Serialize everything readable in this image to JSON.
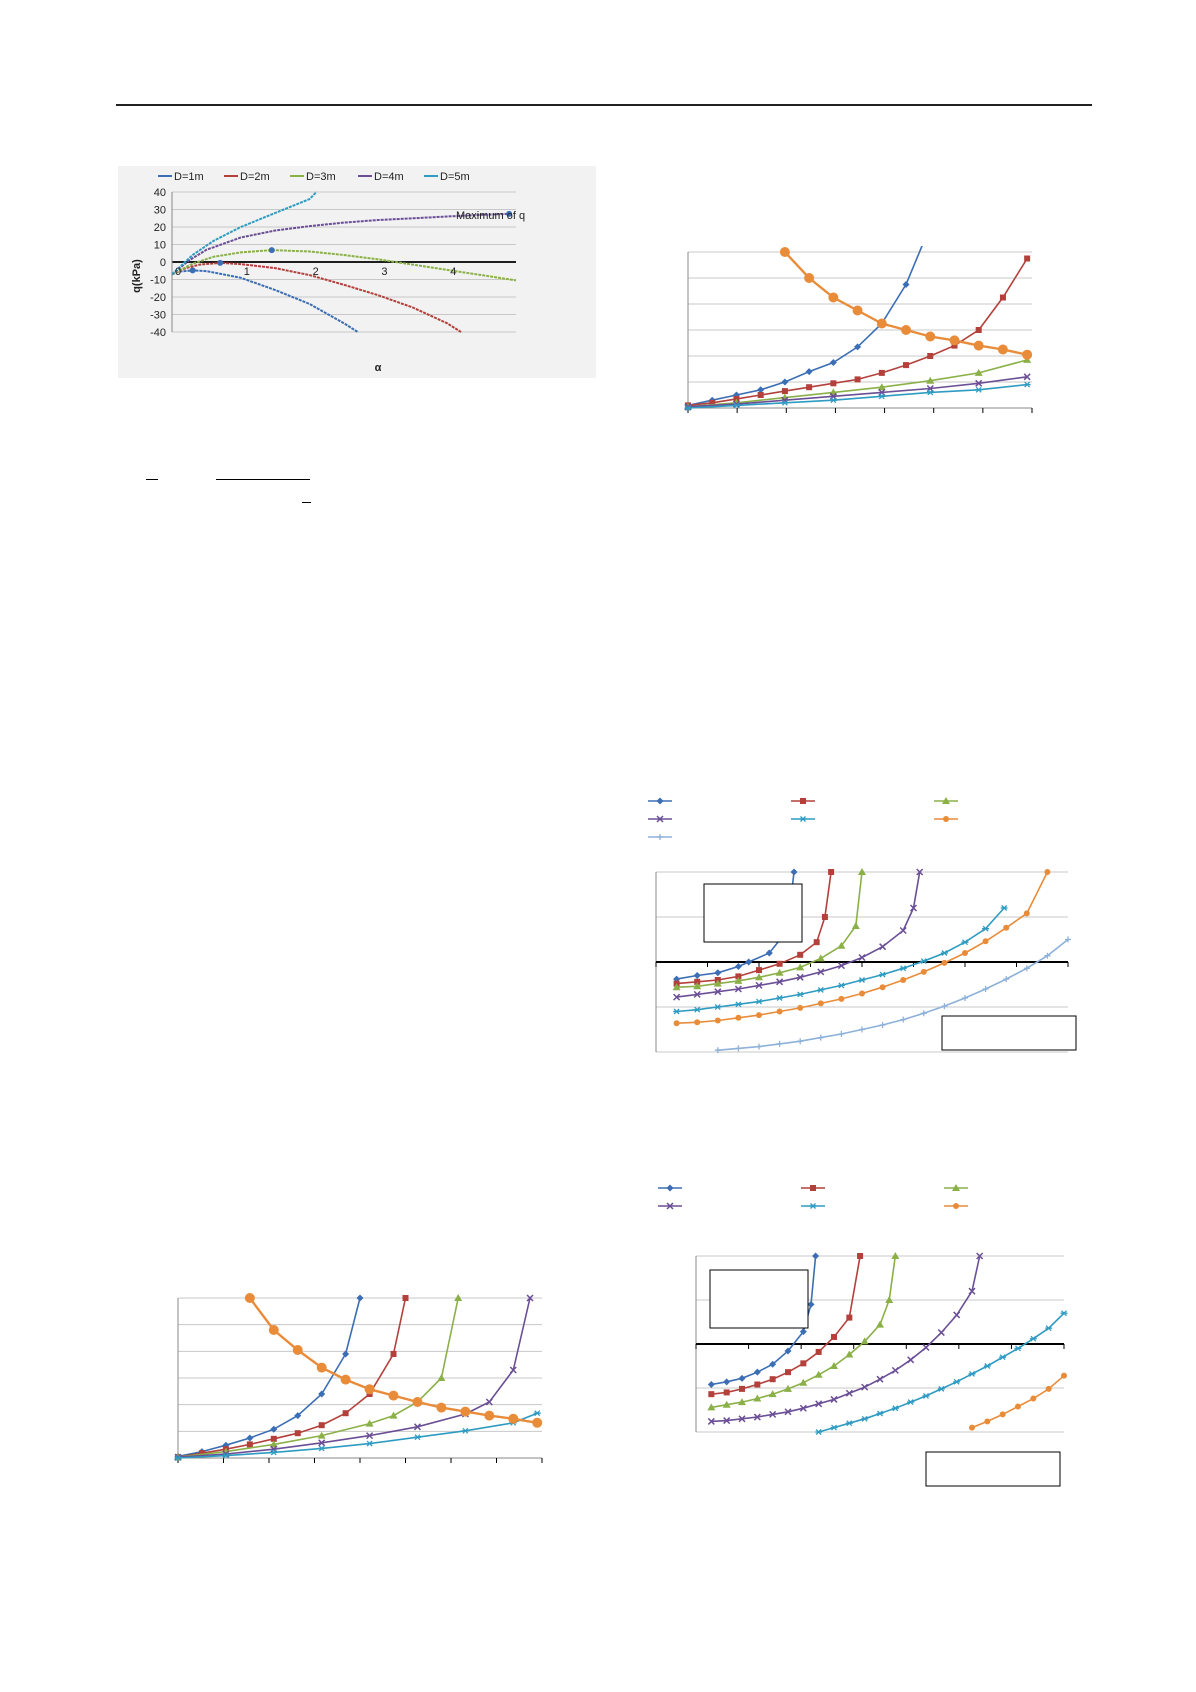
{
  "colors": {
    "blue": "#3B6EB4",
    "red": "#B3403A",
    "green": "#8BB048",
    "purple": "#6B4F96",
    "cyan": "#2E9BC2",
    "orange": "#E98C3A",
    "lightblue": "#8DB1DA",
    "grid": "#cfcfcf",
    "axis": "#000000"
  },
  "chart_data": [
    {
      "type": "line",
      "xlabel": "α",
      "ylabel": "q(kPa)",
      "xlim": [
        0,
        5
      ],
      "ylim": [
        -40,
        40
      ],
      "xticks": [
        "0",
        "1",
        "2",
        "3",
        "4"
      ],
      "yticks": [
        "40",
        "30",
        "20",
        "10",
        "0",
        "-10",
        "-20",
        "-30",
        "-40"
      ],
      "grid": true,
      "legend_position": "top",
      "annotation": "Maximum of q",
      "series": [
        {
          "name": "D=1m",
          "color_key": "blue",
          "x": [
            0,
            0.1,
            0.3,
            0.5,
            1.0,
            1.5,
            2.0,
            2.5,
            2.7
          ],
          "y": [
            -7,
            -5.5,
            -4.8,
            -5.2,
            -9,
            -16,
            -24,
            -35,
            -40
          ]
        },
        {
          "name": "D=2m",
          "color_key": "red",
          "x": [
            0,
            0.2,
            0.4,
            0.7,
            1.0,
            1.5,
            2.0,
            2.5,
            3.0,
            3.5,
            4.0,
            4.2
          ],
          "y": [
            -7,
            -3.5,
            -1.5,
            -0.5,
            -1.2,
            -3.5,
            -7.5,
            -13,
            -19,
            -26,
            -35,
            -40
          ]
        },
        {
          "name": "D=3m",
          "color_key": "green",
          "x": [
            0,
            0.3,
            0.6,
            1.0,
            1.45,
            2.0,
            2.5,
            3.0,
            3.5,
            4.0,
            4.5,
            5.0
          ],
          "y": [
            -7,
            -1,
            3,
            5.5,
            6.8,
            6.0,
            4.0,
            1.5,
            -1.5,
            -4.5,
            -7.5,
            -10.5
          ]
        },
        {
          "name": "D=4m",
          "color_key": "purple",
          "x": [
            0,
            0.25,
            0.5,
            1.0,
            1.5,
            2.0,
            2.5,
            3.0,
            3.5,
            4.0,
            4.5,
            4.9
          ],
          "y": [
            -7,
            1,
            7,
            14,
            18,
            20.5,
            22.5,
            24,
            25,
            26,
            27,
            27.5
          ]
        },
        {
          "name": "D=5m",
          "color_key": "cyan",
          "x": [
            0,
            0.3,
            0.6,
            1.0,
            1.5,
            2.0,
            2.1
          ],
          "y": [
            -7,
            4,
            12,
            20,
            28,
            36,
            40
          ]
        }
      ],
      "maxima": {
        "x": [
          0.3,
          0.7,
          1.45,
          4.9
        ],
        "y": [
          -4.8,
          -0.5,
          6.8,
          27.5
        ]
      }
    },
    {
      "type": "line",
      "series": [
        {
          "name": "",
          "color_key": "blue",
          "marker": "diamond",
          "x": [
            0,
            1,
            2,
            3,
            4,
            5,
            6,
            7,
            8,
            9,
            10,
            10.7
          ],
          "y": [
            0.2,
            0.6,
            1.0,
            1.4,
            2.0,
            2.8,
            3.5,
            4.7,
            6.5,
            9.5,
            14,
            17.5
          ]
        },
        {
          "name": "",
          "color_key": "red",
          "marker": "square",
          "x": [
            0,
            1,
            2,
            3,
            4,
            5,
            6,
            7,
            8,
            9,
            10,
            11,
            12,
            13,
            14
          ],
          "y": [
            0.2,
            0.4,
            0.7,
            1.0,
            1.3,
            1.6,
            1.9,
            2.2,
            2.7,
            3.3,
            4.0,
            4.8,
            6.0,
            8.5,
            11.5
          ]
        },
        {
          "name": "",
          "color_key": "green",
          "marker": "triangle",
          "x": [
            0,
            2,
            4,
            6,
            8,
            10,
            12,
            14
          ],
          "y": [
            0.1,
            0.4,
            0.8,
            1.2,
            1.6,
            2.1,
            2.7,
            3.7
          ]
        },
        {
          "name": "",
          "color_key": "purple",
          "marker": "x",
          "x": [
            0,
            2,
            4,
            6,
            8,
            10,
            12,
            14
          ],
          "y": [
            0.1,
            0.3,
            0.6,
            0.9,
            1.2,
            1.5,
            1.9,
            2.4
          ]
        },
        {
          "name": "",
          "color_key": "cyan",
          "marker": "star",
          "x": [
            0,
            2,
            4,
            6,
            8,
            10,
            12,
            14
          ],
          "y": [
            0.0,
            0.2,
            0.4,
            0.6,
            0.9,
            1.2,
            1.4,
            1.8
          ]
        },
        {
          "name": "",
          "color_key": "orange",
          "marker": "circle-large",
          "x": [
            4,
            5,
            6,
            7,
            8,
            9,
            10,
            11,
            12,
            13,
            14
          ],
          "y": [
            12,
            10,
            8.5,
            7.5,
            6.5,
            6.0,
            5.5,
            5.2,
            4.8,
            4.5,
            4.1
          ]
        }
      ]
    },
    {
      "type": "line",
      "series": [
        {
          "name": "",
          "color_key": "blue",
          "marker": "diamond",
          "x": [
            1,
            2,
            3,
            4,
            4.5,
            5.5,
            6.2,
            6.5,
            6.7
          ],
          "y": [
            -1.9,
            -1.5,
            -1.2,
            -0.5,
            0,
            1.0,
            3.0,
            6.0,
            10
          ]
        },
        {
          "name": "",
          "color_key": "red",
          "marker": "square",
          "x": [
            1,
            2,
            3,
            4,
            5,
            6,
            7,
            7.8,
            8.2,
            8.5
          ],
          "y": [
            -2.4,
            -2.2,
            -2.0,
            -1.6,
            -0.9,
            -0.2,
            0.8,
            2.2,
            5.0,
            10
          ]
        },
        {
          "name": "",
          "color_key": "green",
          "marker": "triangle",
          "x": [
            1,
            2,
            3,
            4,
            5,
            6,
            7,
            8,
            9,
            9.7,
            10
          ],
          "y": [
            -2.8,
            -2.7,
            -2.4,
            -2.1,
            -1.7,
            -1.2,
            -0.6,
            0.4,
            1.8,
            4.0,
            10
          ]
        },
        {
          "name": "",
          "color_key": "purple",
          "marker": "x",
          "x": [
            1,
            2,
            3,
            4,
            5,
            6,
            7,
            8,
            9,
            10,
            11,
            12,
            12.5,
            12.8
          ],
          "y": [
            -3.9,
            -3.6,
            -3.3,
            -3.0,
            -2.6,
            -2.2,
            -1.7,
            -1.1,
            -0.4,
            0.5,
            1.7,
            3.5,
            6.0,
            10
          ]
        },
        {
          "name": "",
          "color_key": "cyan",
          "marker": "star",
          "x": [
            1,
            2,
            3,
            4,
            5,
            6,
            7,
            8,
            9,
            10,
            11,
            12,
            13,
            14,
            15,
            16,
            16.9
          ],
          "y": [
            -5.5,
            -5.3,
            -5.0,
            -4.7,
            -4.4,
            -4.0,
            -3.6,
            -3.1,
            -2.6,
            -2.0,
            -1.4,
            -0.7,
            0.1,
            1.0,
            2.2,
            3.7,
            6.0
          ]
        },
        {
          "name": "",
          "color_key": "orange",
          "marker": "circle",
          "x": [
            1,
            2,
            3,
            4,
            5,
            6,
            7,
            8,
            9,
            10,
            11,
            12,
            13,
            14,
            15,
            16,
            17,
            18,
            19
          ],
          "y": [
            -6.8,
            -6.7,
            -6.5,
            -6.2,
            -5.9,
            -5.5,
            -5.1,
            -4.6,
            -4.1,
            -3.5,
            -2.8,
            -2.0,
            -1.1,
            -0.1,
            1.0,
            2.3,
            3.8,
            5.4,
            10
          ]
        },
        {
          "name": "",
          "color_key": "lightblue",
          "marker": "plus",
          "x": [
            3,
            4,
            5,
            6,
            7,
            8,
            9,
            10,
            11,
            12,
            13,
            14,
            15,
            16,
            17,
            18,
            19,
            20
          ],
          "y": [
            -9.8,
            -9.6,
            -9.4,
            -9.1,
            -8.8,
            -8.4,
            -8.0,
            -7.5,
            -7.0,
            -6.4,
            -5.7,
            -4.9,
            -4.0,
            -3.0,
            -1.9,
            -0.7,
            0.7,
            2.5
          ]
        }
      ]
    },
    {
      "type": "line",
      "series": [
        {
          "name": "",
          "color_key": "blue",
          "marker": "diamond",
          "x": [
            1,
            2,
            3,
            4,
            5,
            6,
            7,
            7.5,
            7.8
          ],
          "y": [
            -4.6,
            -4.3,
            -3.9,
            -3.2,
            -2.3,
            -0.8,
            1.4,
            4.5,
            10
          ]
        },
        {
          "name": "",
          "color_key": "red",
          "marker": "square",
          "x": [
            1,
            2,
            3,
            4,
            5,
            6,
            7,
            8,
            9,
            10,
            10.7
          ],
          "y": [
            -5.7,
            -5.5,
            -5.1,
            -4.6,
            -4.0,
            -3.2,
            -2.2,
            -0.9,
            0.8,
            3.0,
            10
          ]
        },
        {
          "name": "",
          "color_key": "green",
          "marker": "triangle",
          "x": [
            1,
            2,
            3,
            4,
            5,
            6,
            7,
            8,
            9,
            10,
            11,
            12,
            12.6,
            13
          ],
          "y": [
            -7.2,
            -6.9,
            -6.6,
            -6.2,
            -5.7,
            -5.1,
            -4.4,
            -3.5,
            -2.5,
            -1.2,
            0.3,
            2.2,
            5.0,
            10
          ]
        },
        {
          "name": "",
          "color_key": "purple",
          "marker": "x",
          "x": [
            1,
            2,
            3,
            4,
            5,
            6,
            7,
            8,
            9,
            10,
            11,
            12,
            13,
            14,
            15,
            16,
            17,
            18,
            18.5
          ],
          "y": [
            -8.8,
            -8.7,
            -8.5,
            -8.3,
            -8.0,
            -7.7,
            -7.3,
            -6.8,
            -6.3,
            -5.6,
            -4.9,
            -4.0,
            -3.0,
            -1.8,
            -0.4,
            1.3,
            3.3,
            6.0,
            10
          ]
        },
        {
          "name": "",
          "color_key": "cyan",
          "marker": "star",
          "x": [
            8,
            9,
            10,
            11,
            12,
            13,
            14,
            15,
            16,
            17,
            18,
            19,
            20,
            21,
            22,
            23,
            24
          ],
          "y": [
            -10,
            -9.5,
            -9.0,
            -8.5,
            -7.9,
            -7.3,
            -6.6,
            -5.9,
            -5.1,
            -4.3,
            -3.4,
            -2.5,
            -1.5,
            -0.5,
            0.6,
            1.8,
            3.5
          ]
        },
        {
          "name": "",
          "color_key": "orange",
          "marker": "circle",
          "x": [
            18,
            19,
            20,
            21,
            22,
            23,
            24
          ],
          "y": [
            -9.5,
            -8.8,
            -8.0,
            -7.1,
            -6.2,
            -5.1,
            -3.6
          ]
        }
      ]
    },
    {
      "type": "line",
      "series": [
        {
          "name": "",
          "color_key": "blue",
          "marker": "diamond",
          "x": [
            0,
            1,
            2,
            3,
            4,
            5,
            6,
            7,
            7.6
          ],
          "y": [
            0.2,
            0.8,
            1.6,
            2.5,
            3.6,
            5.3,
            8.0,
            13,
            20
          ]
        },
        {
          "name": "",
          "color_key": "red",
          "marker": "square",
          "x": [
            0,
            1,
            2,
            3,
            4,
            5,
            6,
            7,
            8,
            9,
            9.5
          ],
          "y": [
            0.1,
            0.6,
            1.1,
            1.7,
            2.4,
            3.1,
            4.1,
            5.6,
            8.0,
            13,
            20
          ]
        },
        {
          "name": "",
          "color_key": "green",
          "marker": "triangle",
          "x": [
            0,
            2,
            4,
            6,
            8,
            9,
            10,
            11,
            11.7
          ],
          "y": [
            0.1,
            0.8,
            1.7,
            2.8,
            4.3,
            5.3,
            7.0,
            10,
            20
          ]
        },
        {
          "name": "",
          "color_key": "purple",
          "marker": "x",
          "x": [
            0,
            2,
            4,
            6,
            8,
            10,
            12,
            13,
            14,
            14.7
          ],
          "y": [
            0.1,
            0.5,
            1.1,
            1.9,
            2.8,
            3.9,
            5.5,
            7.0,
            11,
            20
          ]
        },
        {
          "name": "",
          "color_key": "cyan",
          "marker": "star",
          "x": [
            0,
            2,
            4,
            6,
            8,
            10,
            12,
            14,
            15
          ],
          "y": [
            0.0,
            0.3,
            0.7,
            1.2,
            1.8,
            2.6,
            3.4,
            4.4,
            5.6
          ]
        },
        {
          "name": "",
          "color_key": "orange",
          "marker": "circle-large",
          "x": [
            3,
            4,
            5,
            6,
            7,
            8,
            9,
            10,
            11,
            12,
            13,
            14,
            15
          ],
          "y": [
            20,
            16,
            13.5,
            11.3,
            9.8,
            8.6,
            7.8,
            7.0,
            6.3,
            5.8,
            5.3,
            4.9,
            4.4
          ]
        }
      ]
    }
  ]
}
